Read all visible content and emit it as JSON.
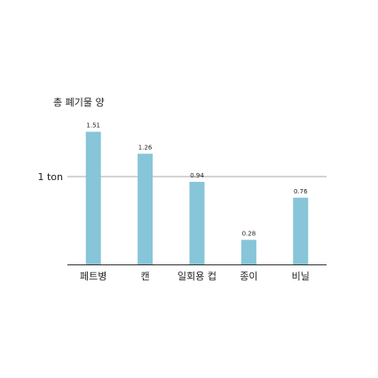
{
  "chart_data": {
    "type": "bar",
    "title": "총 폐기물 양",
    "categories": [
      "페트병",
      "캔",
      "일회용 컵",
      "종이",
      "비닐"
    ],
    "values": [
      1.51,
      1.26,
      0.94,
      0.28,
      0.76
    ],
    "value_labels": [
      "1.51",
      "1.26",
      "0.94",
      "0.28",
      "0.76"
    ],
    "reference_line": {
      "value": 1,
      "label": "1 ton"
    },
    "ylim": [
      0,
      1.51
    ],
    "grid": false,
    "colors": {
      "bar": "#87c5d8",
      "axis": "#333333",
      "reference": "#aaaaaa"
    }
  }
}
